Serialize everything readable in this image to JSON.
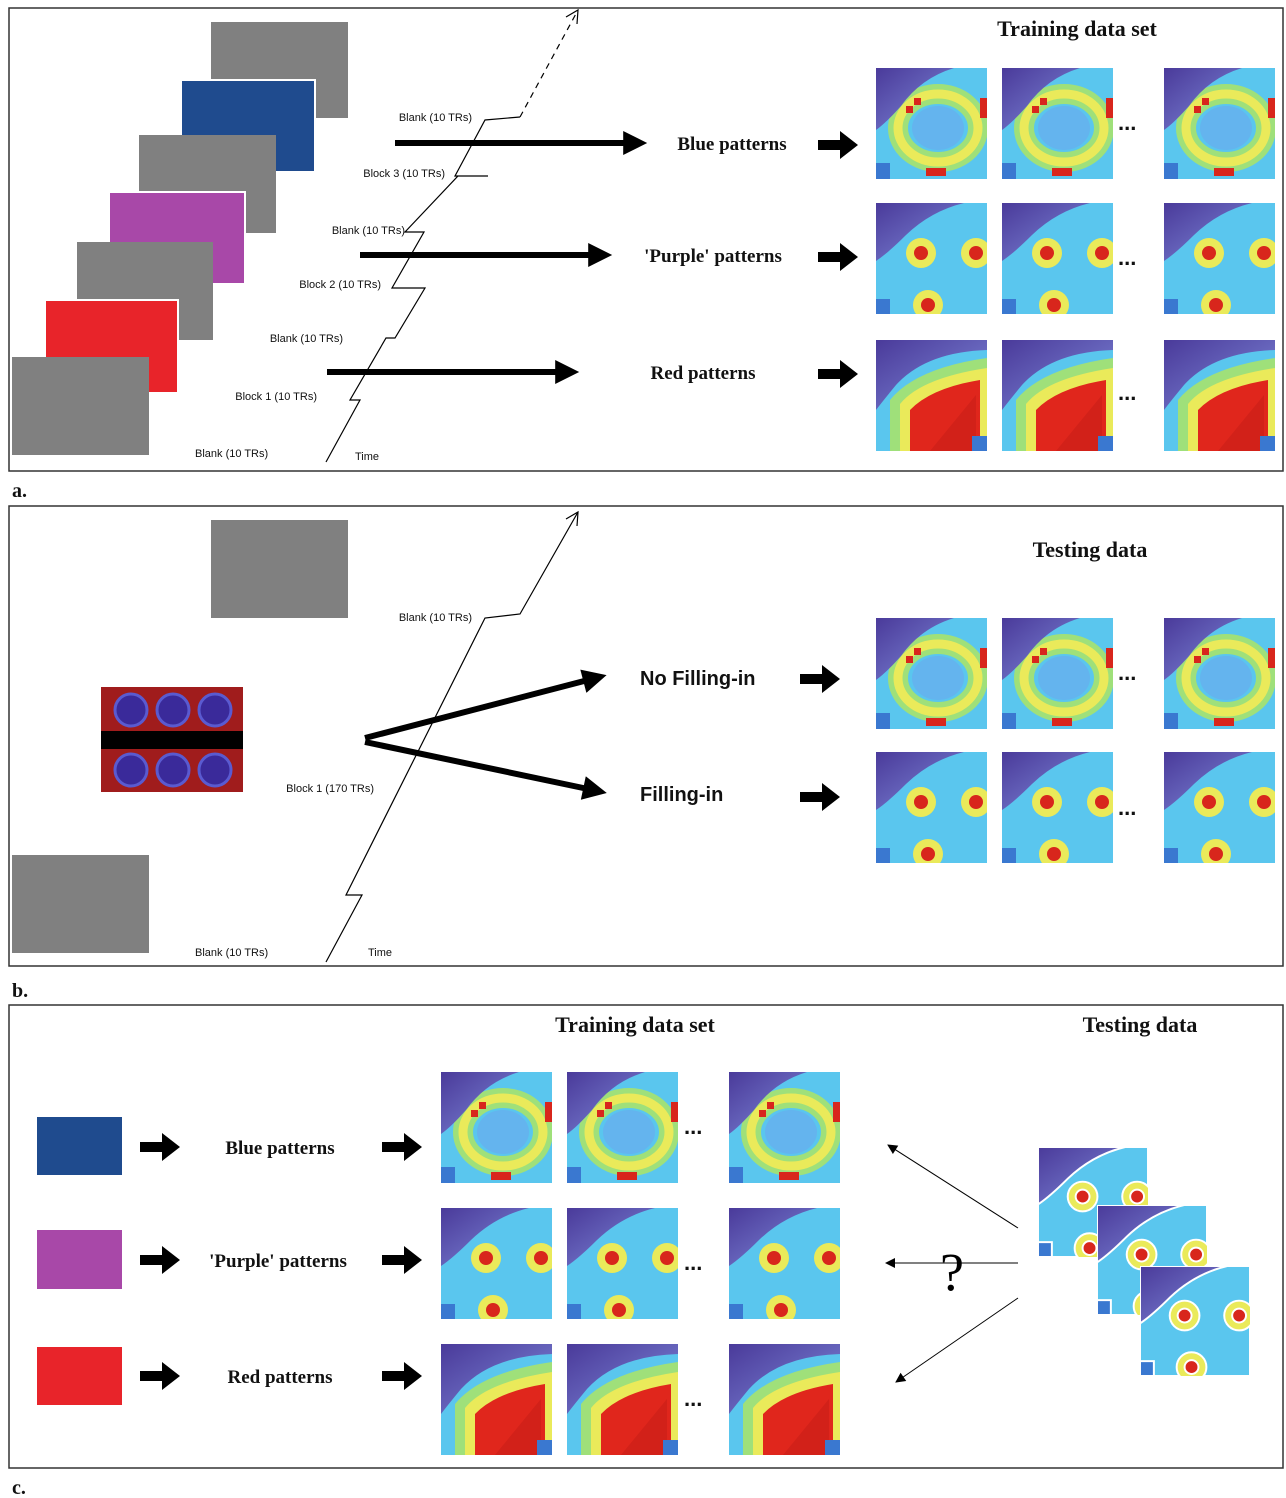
{
  "panels": {
    "a": {
      "label": "a.",
      "title": "Training data set",
      "timeline": [
        "Blank (10 TRs)",
        "Block 3 (10 TRs)",
        "Blank (10 TRs)",
        "Block 2 (10 TRs)",
        "Blank (10 TRs)",
        "Block 1 (10 TRs)",
        "Blank (10 TRs)"
      ],
      "time_label": "Time",
      "rows": [
        "Blue patterns",
        "'Purple' patterns",
        "Red patterns"
      ],
      "ellipsis": "..."
    },
    "b": {
      "label": "b.",
      "title": "Testing data",
      "timeline": [
        "Blank (10 TRs)",
        "Block 1 (170 TRs)",
        "Blank (10 TRs)"
      ],
      "time_label": "Time",
      "rows": [
        "No Filling-in",
        "Filling-in"
      ],
      "ellipsis": "..."
    },
    "c": {
      "label": "c.",
      "training_title": "Training data set",
      "testing_title": "Testing data",
      "rows": [
        "Blue patterns",
        "'Purple' patterns",
        "Red patterns"
      ],
      "ellipsis": "...",
      "question": "?"
    }
  }
}
